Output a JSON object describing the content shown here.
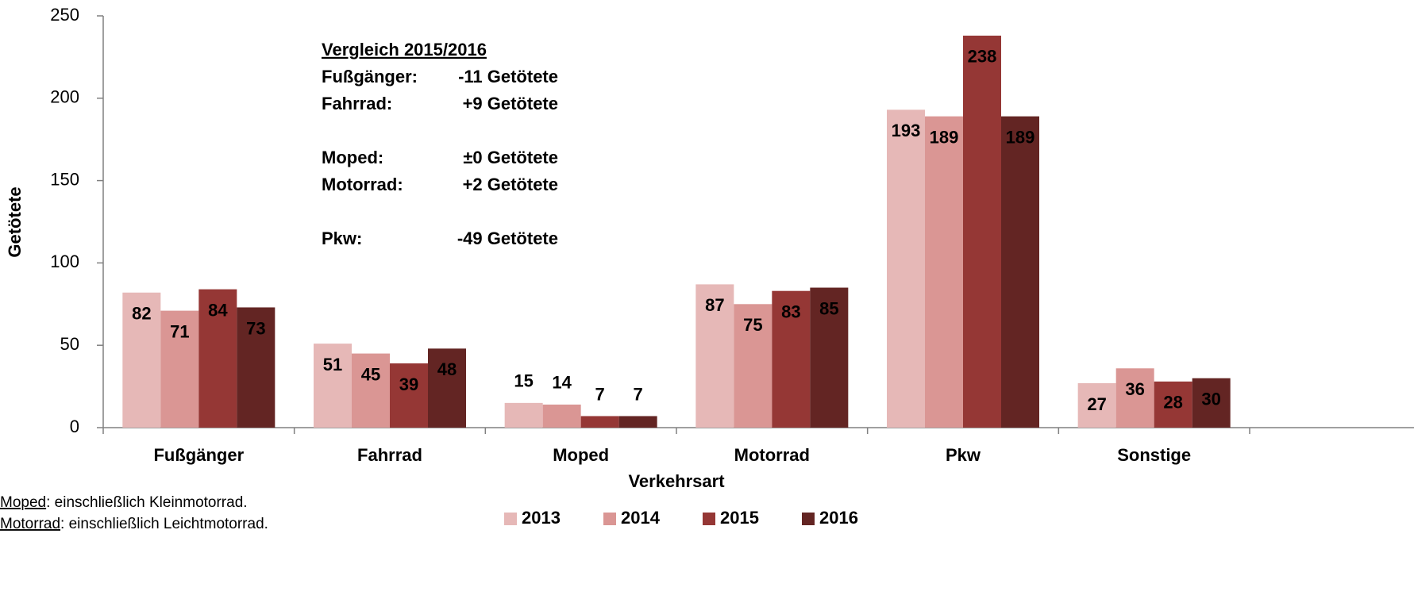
{
  "chart_data": {
    "type": "bar",
    "y_label": "Getötete",
    "x_label": "Verkehrsart",
    "categories": [
      "Fußgänger",
      "Fahrrad",
      "Moped",
      "Motorrad",
      "Pkw",
      "Sonstige"
    ],
    "series": [
      {
        "name": "2013",
        "color": "#e6b8b7",
        "values": [
          82,
          51,
          15,
          87,
          193,
          27
        ]
      },
      {
        "name": "2014",
        "color": "#da9694",
        "values": [
          71,
          45,
          14,
          75,
          189,
          36
        ]
      },
      {
        "name": "2015",
        "color": "#953735",
        "values": [
          84,
          39,
          7,
          83,
          238,
          28
        ]
      },
      {
        "name": "2016",
        "color": "#632523",
        "values": [
          73,
          48,
          7,
          85,
          189,
          30
        ]
      }
    ],
    "ylim": [
      0,
      250
    ],
    "yticks": [
      0,
      50,
      100,
      150,
      200,
      250
    ],
    "legend": "bottom",
    "annotation": {
      "title": "Vergleich 2015/2016",
      "groups": [
        [
          [
            "Fußgänger:",
            "-11 Getötete"
          ],
          [
            "Fahrrad:",
            "+9 Getötete"
          ]
        ],
        [
          [
            "Moped:",
            "±0 Getötete"
          ],
          [
            "Motorrad:",
            "+2 Getötete"
          ]
        ],
        [
          [
            "Pkw:",
            "-49 Getötete"
          ]
        ]
      ]
    },
    "footnotes": [
      {
        "term": "Moped",
        "text": ": einschließlich Kleinmotorrad."
      },
      {
        "term": "Motorrad",
        "text": ": einschließlich Leichtmotorrad."
      }
    ]
  }
}
